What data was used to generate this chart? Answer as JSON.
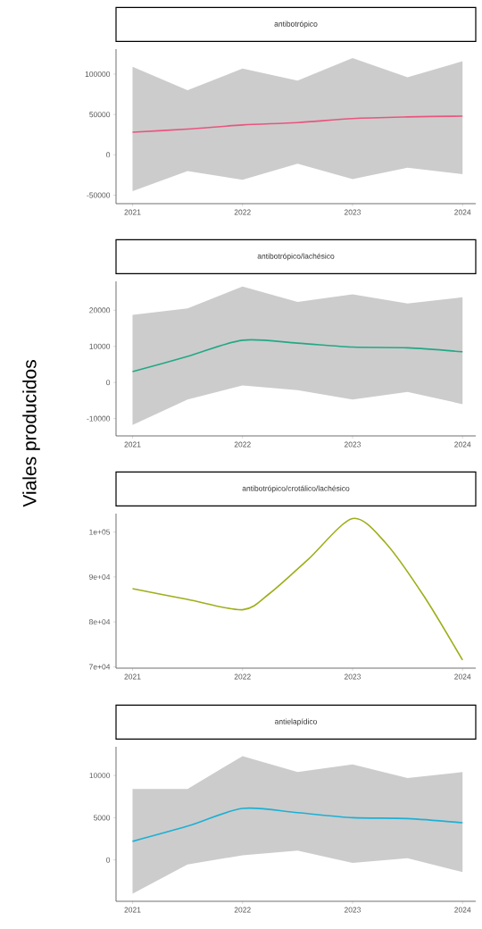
{
  "chart_data": [
    {
      "type": "line",
      "title": "antibotrópico",
      "x": [
        2021,
        2021.5,
        2022,
        2022.5,
        2023,
        2023.5,
        2024
      ],
      "series": [
        {
          "color": "#e9557f",
          "values": [
            28000,
            32000,
            37000,
            40000,
            45000,
            47000,
            48000
          ],
          "lower": [
            -45000,
            -20000,
            -31000,
            -11000,
            -30000,
            -16000,
            -24000
          ],
          "upper": [
            109000,
            80000,
            107000,
            92000,
            120000,
            96000,
            116000
          ]
        }
      ],
      "xlim": [
        2020.85,
        2024.12
      ],
      "xticks": [
        2021,
        2022,
        2023,
        2024
      ],
      "ylim": [
        -60500,
        131000
      ],
      "yticks": [
        -50000,
        0,
        50000,
        100000
      ]
    },
    {
      "type": "line",
      "title": "antibotrópico/lachésico",
      "ylabel": "Viales producidos",
      "x": [
        2021,
        2021.5,
        2022,
        2022.5,
        2023,
        2023.5,
        2024
      ],
      "series": [
        {
          "color": "#22a884",
          "values": [
            3000,
            7200,
            11700,
            10900,
            9800,
            9600,
            8500
          ],
          "lower": [
            -11800,
            -4700,
            -800,
            -2100,
            -4700,
            -2600,
            -6000
          ],
          "upper": [
            18700,
            20500,
            26600,
            22300,
            24400,
            21900,
            23600
          ]
        }
      ],
      "xlim": [
        2020.85,
        2024.12
      ],
      "xticks": [
        2021,
        2022,
        2023,
        2024
      ],
      "ylim": [
        -14800,
        28000
      ],
      "yticks": [
        -10000,
        0,
        10000,
        20000
      ]
    },
    {
      "type": "line",
      "title": "antibotrópico/crotálico/lachésico",
      "x": [
        2021,
        2021.5,
        2022,
        2022.25,
        2022.6,
        2023,
        2023.3,
        2023.65,
        2024
      ],
      "series": [
        {
          "color": "#9fae1a",
          "values": [
            87400,
            85000,
            82700,
            86400,
            94000,
            103000,
            97600,
            85700,
            71500
          ]
        }
      ],
      "xlim": [
        2020.85,
        2024.12
      ],
      "xticks": [
        2021,
        2022,
        2023,
        2024
      ],
      "ylim": [
        69700,
        104100
      ],
      "yticks": [
        {
          "value": 70000,
          "label": "7e+04"
        },
        {
          "value": 80000,
          "label": "8e+04"
        },
        {
          "value": 90000,
          "label": "9e+04"
        },
        {
          "value": 100000,
          "label": "1e+05"
        }
      ]
    },
    {
      "type": "line",
      "title": "antielapídico",
      "x": [
        2021,
        2021.5,
        2022,
        2022.5,
        2023,
        2023.5,
        2024
      ],
      "series": [
        {
          "color": "#1cb0d4",
          "values": [
            2200,
            4000,
            6100,
            5600,
            5000,
            4900,
            4400
          ],
          "lower": [
            -4000,
            -550,
            550,
            1100,
            -350,
            200,
            -1450
          ],
          "upper": [
            8400,
            8400,
            12300,
            10400,
            11300,
            9700,
            10400
          ]
        }
      ],
      "xlim": [
        2020.85,
        2024.12
      ],
      "xticks": [
        2021,
        2022,
        2023,
        2024
      ],
      "ylim": [
        -4900,
        13400
      ],
      "yticks": [
        0,
        5000,
        10000
      ]
    }
  ]
}
